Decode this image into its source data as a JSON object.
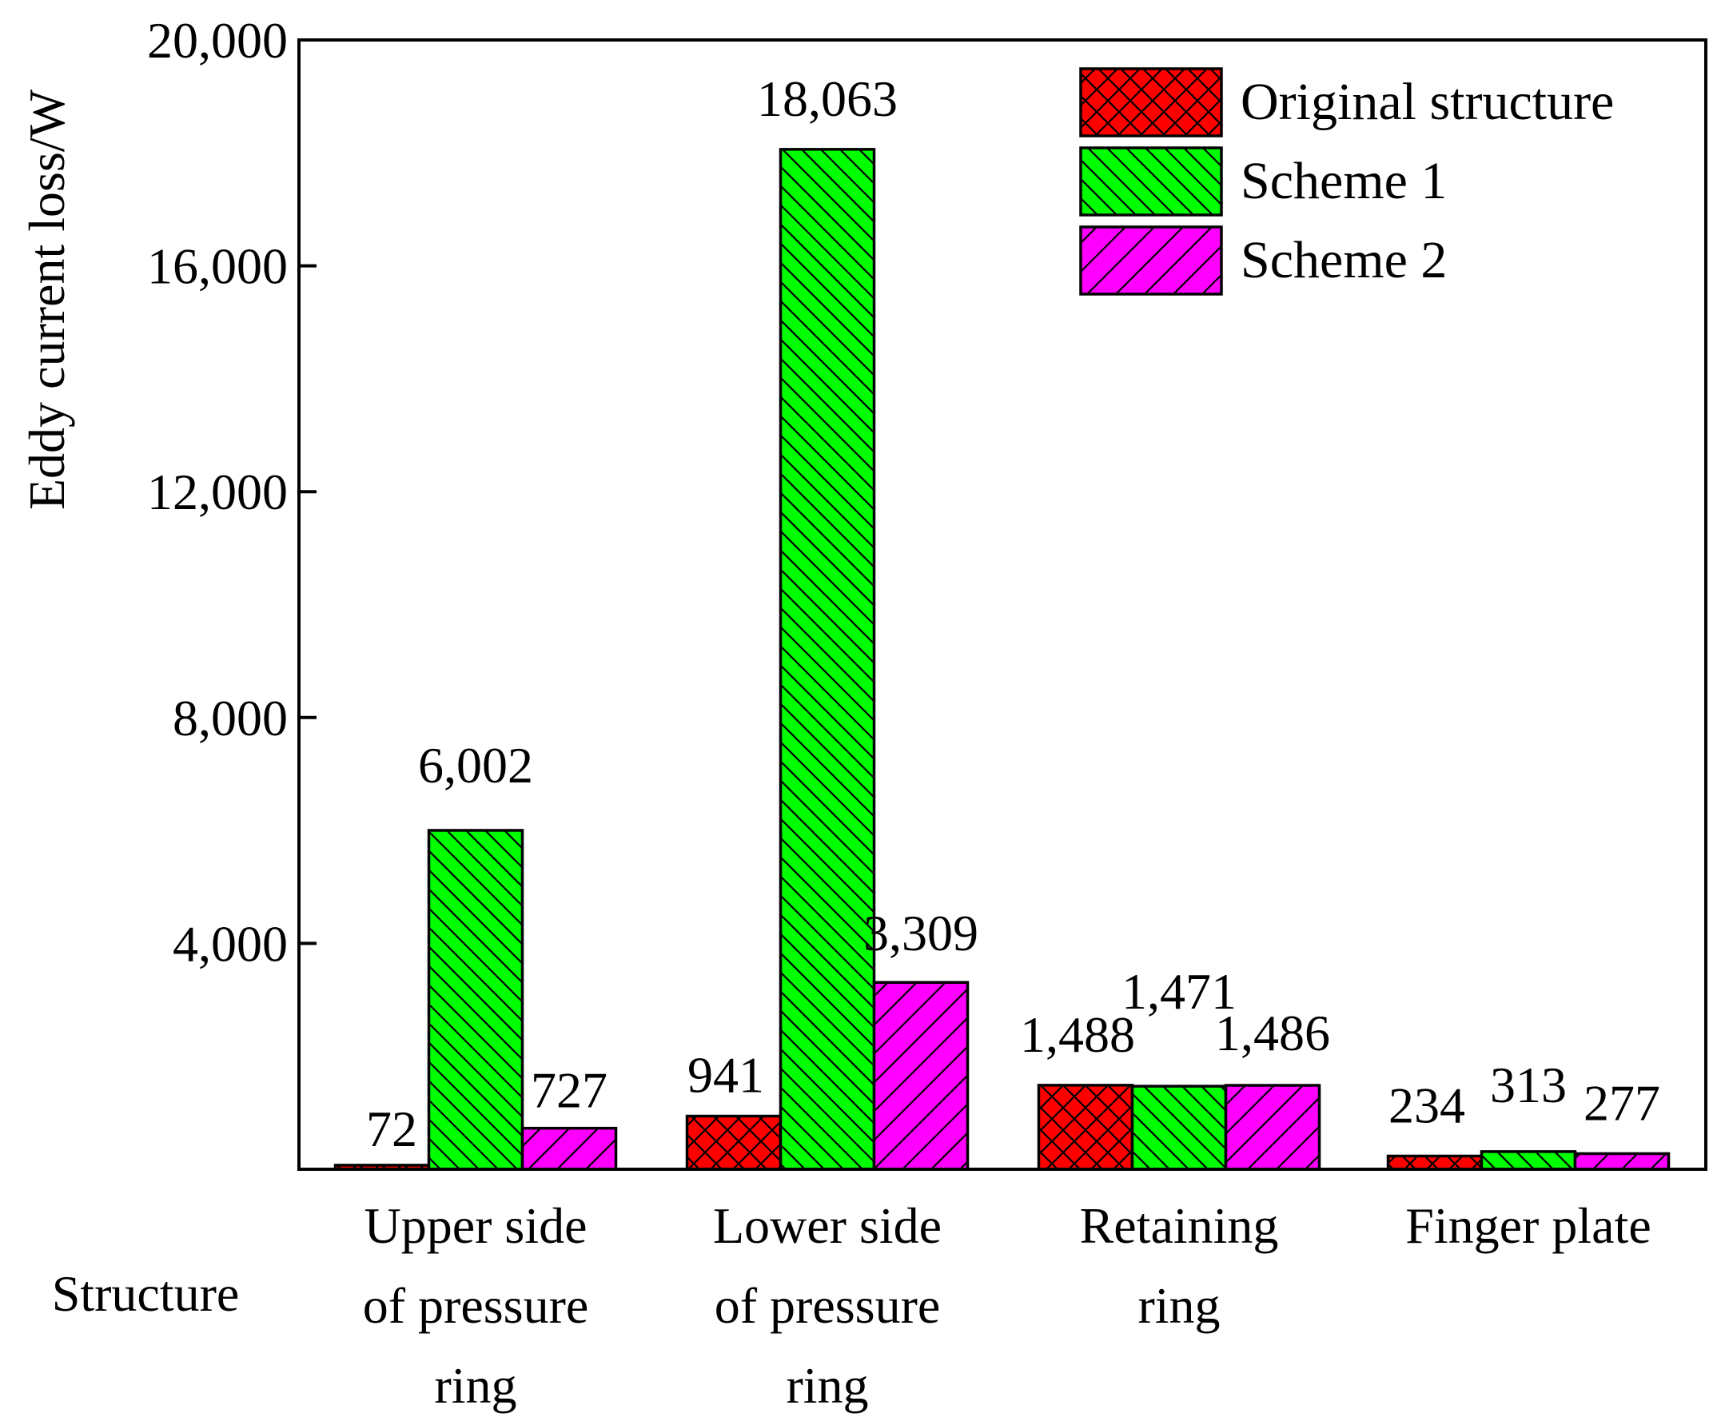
{
  "chart_data": {
    "type": "bar",
    "title": "",
    "ylabel": "Eddy current loss/W",
    "xlabel": "Structure",
    "ylim": [
      0,
      20000
    ],
    "yticks": [
      4000,
      8000,
      12000,
      16000,
      20000
    ],
    "ytick_labels": [
      "4,000",
      "8,000",
      "12,000",
      "16,000",
      "20,000"
    ],
    "categories": [
      [
        "Upper side",
        "of pressure",
        "ring"
      ],
      [
        "Lower side",
        "of pressure",
        "ring"
      ],
      [
        "Retaining",
        "ring"
      ],
      [
        "Finger plate"
      ]
    ],
    "series": [
      {
        "name": "Original structure",
        "color": "#ff0000",
        "pattern": "crosshatch",
        "values": [
          72,
          941,
          1488,
          234
        ],
        "labels": [
          "72",
          "941",
          "1,488",
          "234"
        ]
      },
      {
        "name": "Scheme 1",
        "color": "#00ff00",
        "pattern": "backslash",
        "values": [
          6002,
          18063,
          1471,
          313
        ],
        "labels": [
          "6,002",
          "18,063",
          "1,471",
          "313"
        ]
      },
      {
        "name": "Scheme 2",
        "color": "#ff00ff",
        "pattern": "slash",
        "values": [
          727,
          3309,
          1486,
          277
        ],
        "labels": [
          "727",
          "3,309",
          "1,486",
          "277"
        ]
      }
    ],
    "legend_position": "top-right",
    "grid": false
  }
}
